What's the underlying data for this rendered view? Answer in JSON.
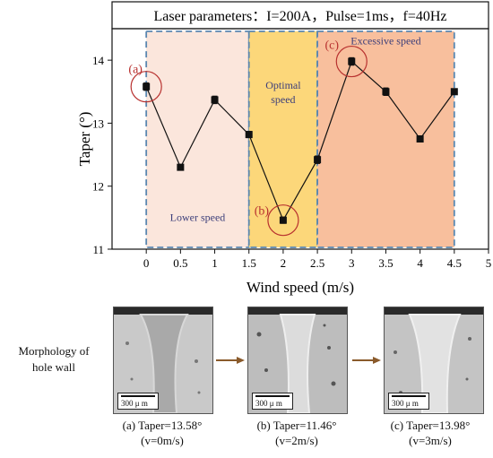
{
  "header": {
    "title": "Laser parameters：I=200A，Pulse=1ms，f=40Hz"
  },
  "chart_data": {
    "type": "line",
    "xlabel": "Wind speed (m/s)",
    "ylabel": "Taper (°)",
    "xlim": [
      -0.5,
      5
    ],
    "ylim": [
      11,
      14.5
    ],
    "x_ticks": [
      "0",
      "0.5",
      "1",
      "1.5",
      "2",
      "2.5",
      "3",
      "3.5",
      "4",
      "4.5",
      "5"
    ],
    "y_ticks": [
      "11",
      "12",
      "13",
      "14"
    ],
    "series": [
      {
        "x": [
          0,
          0.5,
          1,
          1.5,
          2,
          2.5,
          3,
          3.5,
          4,
          4.5
        ],
        "y": [
          13.58,
          12.3,
          13.37,
          12.82,
          11.46,
          12.42,
          13.98,
          13.5,
          12.75,
          13.5
        ],
        "error": [
          0.06,
          0.04,
          0.06,
          0.05,
          0.05,
          0.06,
          0.06,
          0.06,
          0.04,
          0.03
        ],
        "color": "#111111"
      }
    ],
    "regions": [
      {
        "label": "Lower speed",
        "x0": 0,
        "x1": 1.5,
        "color": "#fbe6dc"
      },
      {
        "label": "Optimal\nspeed",
        "x0": 1.5,
        "x1": 2.5,
        "color": "#fcd77a"
      },
      {
        "label": "Excessive speed",
        "x0": 2.5,
        "x1": 4.5,
        "color": "#f8bf9d"
      }
    ],
    "annotations": [
      {
        "label": "(a)",
        "x": 0,
        "y": 13.58
      },
      {
        "label": "(b)",
        "x": 2,
        "y": 11.46
      },
      {
        "label": "(c)",
        "x": 3,
        "y": 13.98
      }
    ],
    "circle_color": "#b8312f",
    "region_label_color": "#3d3f7a",
    "border_color": "#5a87b0"
  },
  "morphology": {
    "label": "Morphology of\nhole wall",
    "arrow_color": "#8a5a2b",
    "panels": [
      {
        "caption": "(a) Taper=13.58°",
        "sub": "(v=0m/s)",
        "scale": "300 μ m"
      },
      {
        "caption": "(b) Taper=11.46°",
        "sub": "(v=2m/s)",
        "scale": "300 μ m"
      },
      {
        "caption": "(c) Taper=13.98°",
        "sub": "(v=3m/s)",
        "scale": "300 μ m"
      }
    ]
  }
}
